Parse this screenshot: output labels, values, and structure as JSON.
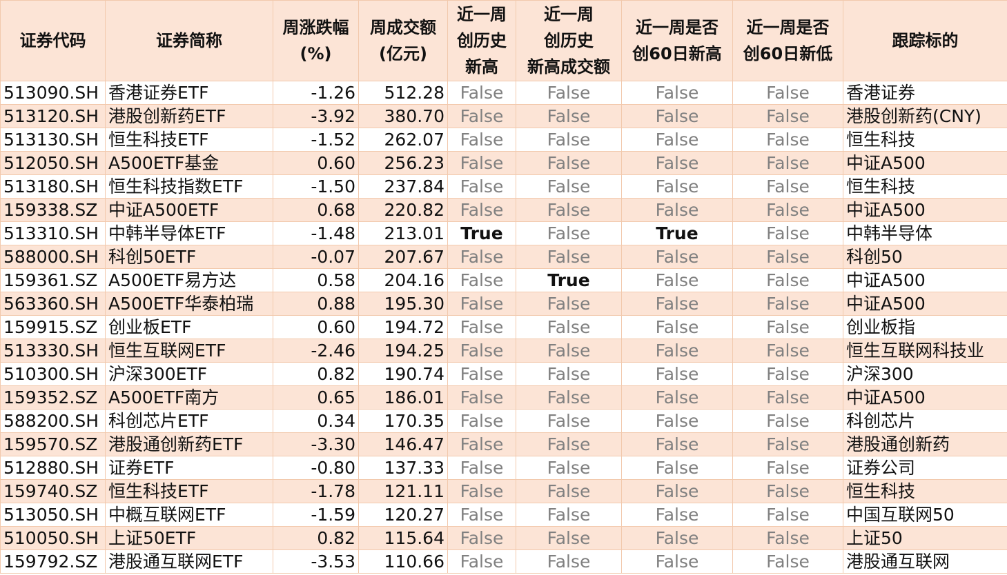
{
  "headers": [
    "证券代码",
    "证券简称",
    "周涨跌幅\n(%)",
    "周成交额\n(亿元)",
    "近一周\n创历史\n新高",
    "近一周\n创历史\n新高成交额",
    "近一周是否\n创60日新高",
    "近一周是否\n创60日新低",
    "跟踪标的"
  ],
  "rows": [
    [
      "513090.SH",
      "香港证券ETF",
      "-1.26",
      "512.28",
      "False",
      "False",
      "False",
      "False",
      "香港证券"
    ],
    [
      "513120.SH",
      "港股创新药ETF",
      "-3.92",
      "380.70",
      "False",
      "False",
      "False",
      "False",
      "港股创新药(CNY)"
    ],
    [
      "513130.SH",
      "恒生科技ETF",
      "-1.52",
      "262.07",
      "False",
      "False",
      "False",
      "False",
      "恒生科技"
    ],
    [
      "512050.SH",
      "A500ETF基金",
      "0.60",
      "256.23",
      "False",
      "False",
      "False",
      "False",
      "中证A500"
    ],
    [
      "513180.SH",
      "恒生科技指数ETF",
      "-1.50",
      "237.84",
      "False",
      "False",
      "False",
      "False",
      "恒生科技"
    ],
    [
      "159338.SZ",
      "中证A500ETF",
      "0.68",
      "220.82",
      "False",
      "False",
      "False",
      "False",
      "中证A500"
    ],
    [
      "513310.SH",
      "中韩半导体ETF",
      "-1.48",
      "213.01",
      "True",
      "False",
      "True",
      "False",
      "中韩半导体"
    ],
    [
      "588000.SH",
      "科创50ETF",
      "-0.07",
      "207.67",
      "False",
      "False",
      "False",
      "False",
      "科创50"
    ],
    [
      "159361.SZ",
      "A500ETF易方达",
      "0.58",
      "204.16",
      "False",
      "True",
      "False",
      "False",
      "中证A500"
    ],
    [
      "563360.SH",
      "A500ETF华泰柏瑞",
      "0.88",
      "195.30",
      "False",
      "False",
      "False",
      "False",
      "中证A500"
    ],
    [
      "159915.SZ",
      "创业板ETF",
      "0.60",
      "194.72",
      "False",
      "False",
      "False",
      "False",
      "创业板指"
    ],
    [
      "513330.SH",
      "恒生互联网ETF",
      "-2.46",
      "194.25",
      "False",
      "False",
      "False",
      "False",
      "恒生互联网科技业"
    ],
    [
      "510300.SH",
      "沪深300ETF",
      "0.82",
      "190.74",
      "False",
      "False",
      "False",
      "False",
      "沪深300"
    ],
    [
      "159352.SZ",
      "A500ETF南方",
      "0.65",
      "186.01",
      "False",
      "False",
      "False",
      "False",
      "中证A500"
    ],
    [
      "588200.SH",
      "科创芯片ETF",
      "0.34",
      "170.35",
      "False",
      "False",
      "False",
      "False",
      "科创芯片"
    ],
    [
      "159570.SZ",
      "港股通创新药ETF",
      "-3.30",
      "146.47",
      "False",
      "False",
      "False",
      "False",
      "港股通创新药"
    ],
    [
      "512880.SH",
      "证券ETF",
      "-0.80",
      "137.33",
      "False",
      "False",
      "False",
      "False",
      "证券公司"
    ],
    [
      "159740.SZ",
      "恒生科技ETF",
      "-1.78",
      "121.11",
      "False",
      "False",
      "False",
      "False",
      "恒生科技"
    ],
    [
      "513050.SH",
      "中概互联网ETF",
      "-1.59",
      "120.27",
      "False",
      "False",
      "False",
      "False",
      "中国互联网50"
    ],
    [
      "510050.SH",
      "上证50ETF",
      "0.82",
      "115.64",
      "False",
      "False",
      "False",
      "False",
      "上证50"
    ],
    [
      "159792.SZ",
      "港股通互联网ETF",
      "-3.53",
      "110.66",
      "False",
      "False",
      "False",
      "False",
      "港股通互联网"
    ]
  ]
}
